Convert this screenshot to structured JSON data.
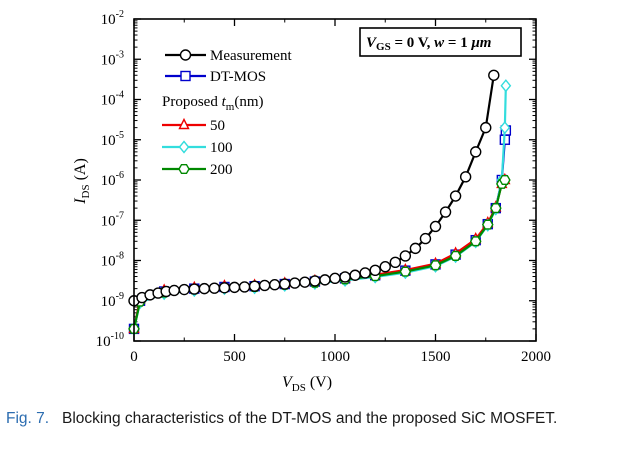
{
  "chart_data": {
    "type": "line",
    "annotation": {
      "vgs": "V",
      "vgs_sub": "GS",
      "rest": " = 0 V, ",
      "w": "w",
      "wrest": " = 1 ",
      "unit": "μm"
    },
    "xlabel": {
      "main": "V",
      "sub": "DS",
      "unit": " (V)"
    },
    "ylabel": {
      "main": "I",
      "sub": "DS",
      "unit": " (A)"
    },
    "x_ticks": [
      "0",
      "500",
      "1000",
      "1500",
      "2000"
    ],
    "y_ticks": [
      {
        "base": "10",
        "exp": "-2"
      },
      {
        "base": "10",
        "exp": "-3"
      },
      {
        "base": "10",
        "exp": "-4"
      },
      {
        "base": "10",
        "exp": "-5"
      },
      {
        "base": "10",
        "exp": "-6"
      },
      {
        "base": "10",
        "exp": "-7"
      },
      {
        "base": "10",
        "exp": "-8"
      },
      {
        "base": "10",
        "exp": "-9"
      },
      {
        "base": "10",
        "exp": "-10"
      }
    ],
    "xlim": [
      0,
      2000
    ],
    "ylim_log10": [
      -10,
      -2
    ],
    "y_scale": "log",
    "legend_heading": {
      "text": "Proposed ",
      "var": "t",
      "sub": "m",
      "unit": "(nm)"
    },
    "legend_position": "top-left",
    "series": [
      {
        "name": "Measurement",
        "color": "#000000",
        "marker": "circle",
        "marker_fill": "#ffffff",
        "x": [
          0,
          40,
          80,
          120,
          160,
          200,
          250,
          300,
          350,
          400,
          450,
          500,
          550,
          600,
          650,
          700,
          750,
          800,
          850,
          900,
          950,
          1000,
          1050,
          1100,
          1150,
          1200,
          1250,
          1300,
          1350,
          1400,
          1450,
          1500,
          1550,
          1600,
          1650,
          1700,
          1750,
          1790
        ],
        "y": [
          1e-09,
          1.2e-09,
          1.4e-09,
          1.55e-09,
          1.7e-09,
          1.8e-09,
          1.9e-09,
          1.95e-09,
          2e-09,
          2.05e-09,
          2.1e-09,
          2.15e-09,
          2.2e-09,
          2.3e-09,
          2.4e-09,
          2.5e-09,
          2.6e-09,
          2.75e-09,
          2.9e-09,
          3.1e-09,
          3.3e-09,
          3.6e-09,
          3.9e-09,
          4.3e-09,
          4.9e-09,
          5.7e-09,
          7e-09,
          9e-09,
          1.3e-08,
          2e-08,
          3.5e-08,
          7e-08,
          1.6e-07,
          4e-07,
          1.2e-06,
          5e-06,
          2e-05,
          0.0004
        ]
      },
      {
        "name": "DT-MOS",
        "color": "#0000cc",
        "marker": "square",
        "marker_fill": "#ffffff",
        "x": [
          0,
          30,
          150,
          300,
          450,
          600,
          750,
          900,
          1050,
          1200,
          1350,
          1500,
          1600,
          1700,
          1760,
          1800,
          1830,
          1845,
          1850
        ],
        "y": [
          2e-10,
          1e-09,
          1.7e-09,
          2e-09,
          2.2e-09,
          2.3e-09,
          2.6e-09,
          3e-09,
          3.6e-09,
          4.3e-09,
          5.6e-09,
          8e-09,
          1.4e-08,
          3.2e-08,
          8e-08,
          2e-07,
          1e-06,
          1e-05,
          1.7e-05
        ]
      },
      {
        "name": "50",
        "color": "#ee0000",
        "marker": "triangle",
        "marker_fill": "#ffffff",
        "x": [
          0,
          30,
          150,
          300,
          450,
          600,
          750,
          900,
          1050,
          1200,
          1350,
          1500,
          1600,
          1700,
          1760,
          1800,
          1830,
          1845
        ],
        "y": [
          2e-10,
          1.1e-09,
          1.8e-09,
          2.1e-09,
          2.3e-09,
          2.4e-09,
          2.7e-09,
          3.1e-09,
          3.7e-09,
          4.4e-09,
          5.8e-09,
          8.3e-09,
          1.5e-08,
          3.4e-08,
          8.5e-08,
          2.1e-07,
          8e-07,
          1e-06
        ]
      },
      {
        "name": "100",
        "color": "#33dddd",
        "marker": "diamond",
        "marker_fill": "#ffffff",
        "x": [
          0,
          30,
          150,
          300,
          450,
          600,
          750,
          900,
          1050,
          1200,
          1350,
          1500,
          1600,
          1700,
          1760,
          1800,
          1830,
          1845,
          1850
        ],
        "y": [
          2e-10,
          9e-10,
          1.5e-09,
          1.8e-09,
          2e-09,
          2.1e-09,
          2.4e-09,
          2.7e-09,
          3.2e-09,
          3.9e-09,
          5e-09,
          7.2e-09,
          1.25e-08,
          2.9e-08,
          7.5e-08,
          1.9e-07,
          1e-06,
          2e-05,
          0.00022
        ]
      },
      {
        "name": "200",
        "color": "#008800",
        "marker": "hexagon",
        "marker_fill": "#ffffff",
        "x": [
          0,
          30,
          150,
          300,
          450,
          600,
          750,
          900,
          1050,
          1200,
          1350,
          1500,
          1600,
          1700,
          1760,
          1800,
          1830,
          1845
        ],
        "y": [
          2e-10,
          9.5e-10,
          1.6e-09,
          1.9e-09,
          2.1e-09,
          2.2e-09,
          2.5e-09,
          2.8e-09,
          3.4e-09,
          4.1e-09,
          5.3e-09,
          7.6e-09,
          1.3e-08,
          3e-08,
          7.8e-08,
          2e-07,
          8e-07,
          1e-06
        ]
      }
    ]
  },
  "caption": {
    "label": "Fig. 7.",
    "text": "Blocking characteristics of the DT-MOS and the proposed SiC MOSFET."
  }
}
